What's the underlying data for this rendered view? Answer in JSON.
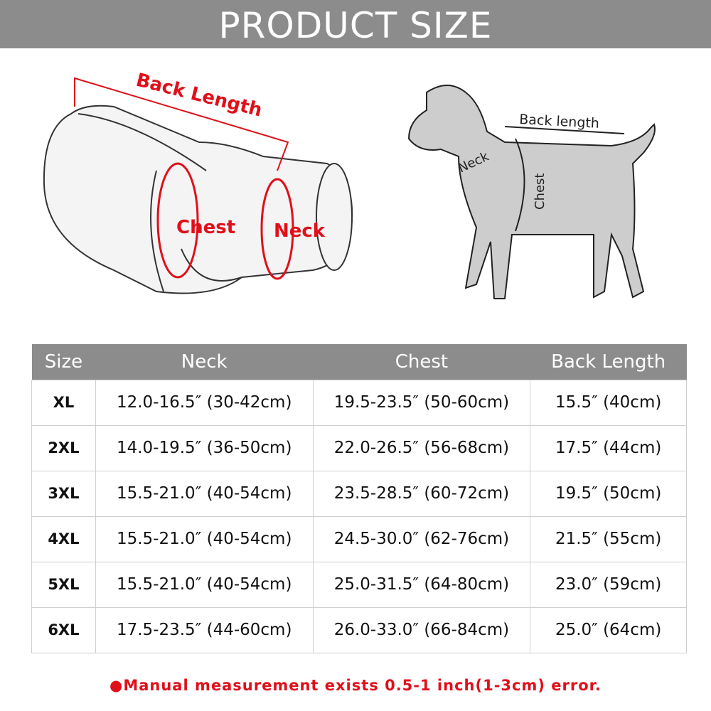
{
  "banner": {
    "title": "PRODUCT SIZE"
  },
  "coat_diagram": {
    "back_length": "Back Length",
    "chest": "Chest",
    "neck": "Neck"
  },
  "dog_diagram": {
    "back_length": "Back length",
    "neck": "Neck",
    "chest": "Chest"
  },
  "table": {
    "headers": [
      "Size",
      "Neck",
      "Chest",
      "Back Length"
    ],
    "rows": [
      [
        "XL",
        "12.0-16.5″  (30-42cm)",
        "19.5-23.5″  (50-60cm)",
        "15.5″  (40cm)"
      ],
      [
        "2XL",
        "14.0-19.5″  (36-50cm)",
        "22.0-26.5″  (56-68cm)",
        "17.5″  (44cm)"
      ],
      [
        "3XL",
        "15.5-21.0″  (40-54cm)",
        "23.5-28.5″  (60-72cm)",
        "19.5″  (50cm)"
      ],
      [
        "4XL",
        "15.5-21.0″  (40-54cm)",
        "24.5-30.0″  (62-76cm)",
        "21.5″  (55cm)"
      ],
      [
        "5XL",
        "15.5-21.0″  (40-54cm)",
        "25.0-31.5″  (64-80cm)",
        "23.0″  (59cm)"
      ],
      [
        "6XL",
        "17.5-23.5″  (44-60cm)",
        "26.0-33.0″  (66-84cm)",
        "25.0″  (64cm)"
      ]
    ]
  },
  "note": "●Manual measurement exists 0.5-1 inch(1-3cm) error.",
  "colors": {
    "banner": "#8c8c8c",
    "accent": "#e0101a"
  }
}
